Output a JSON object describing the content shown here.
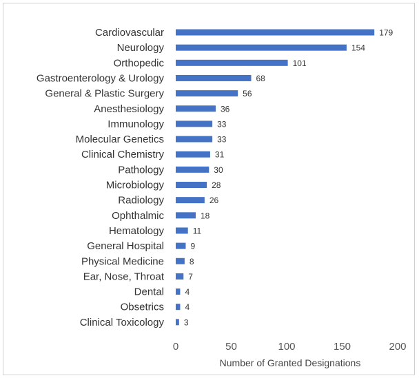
{
  "chart_data": {
    "type": "bar",
    "orientation": "horizontal",
    "categories": [
      "Cardiovascular",
      "Neurology",
      "Orthopedic",
      "Gastroenterology & Urology",
      "General & Plastic Surgery",
      "Anesthesiology",
      "Immunology",
      "Molecular Genetics",
      "Clinical Chemistry",
      "Pathology",
      "Microbiology",
      "Radiology",
      "Ophthalmic",
      "Hematology",
      "General Hospital",
      "Physical Medicine",
      "Ear, Nose, Throat",
      "Dental",
      "Obsetrics",
      "Clinical Toxicology"
    ],
    "values": [
      179,
      154,
      101,
      68,
      56,
      36,
      33,
      33,
      31,
      30,
      28,
      26,
      18,
      11,
      9,
      8,
      7,
      4,
      4,
      3
    ],
    "xlabel": "Number of Granted Designations",
    "xlim": [
      0,
      200
    ],
    "xticks": [
      0,
      50,
      100,
      150,
      200
    ],
    "bar_color": "#4472c4",
    "grid": false,
    "data_labels": true
  }
}
